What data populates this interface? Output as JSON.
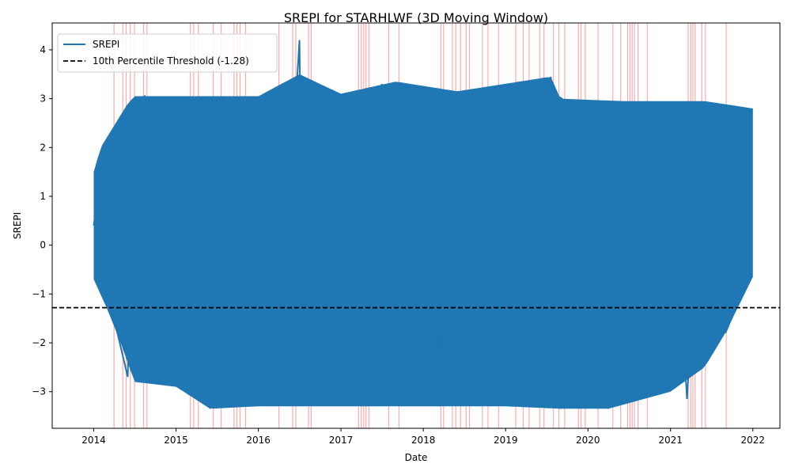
{
  "chart_data": {
    "type": "line",
    "title": "SREPI for STARHLWF (3D Moving Window)",
    "xlabel": "Date",
    "ylabel": "SREPI",
    "xlim": [
      "2013-07-01",
      "2022-05-01"
    ],
    "ylim": [
      -3.75,
      4.55
    ],
    "x_ticks": [
      "2014",
      "2015",
      "2016",
      "2017",
      "2018",
      "2019",
      "2020",
      "2021",
      "2022"
    ],
    "y_ticks": [
      "−3",
      "−2",
      "−1",
      "0",
      "1",
      "2",
      "3",
      "4"
    ],
    "y_tick_values": [
      -3,
      -2,
      -1,
      0,
      1,
      2,
      3,
      4
    ],
    "grid": false,
    "legend": {
      "placement": "upper-left",
      "entries": [
        {
          "label": "SREPI",
          "style": "solid",
          "color": "#1f77b4"
        },
        {
          "label": "10th Percentile Threshold (-1.28)",
          "style": "dashed",
          "color": "#000000"
        }
      ]
    },
    "series": [
      {
        "name": "SREPI",
        "color": "#1f77b4",
        "x": [
          "2014-01-01",
          "2014-02-15",
          "2014-04-01",
          "2014-06-01",
          "2014-07-01",
          "2014-08-15",
          "2015-01-01",
          "2015-03-15",
          "2015-06-01",
          "2015-09-01",
          "2016-01-01",
          "2016-04-01",
          "2016-07-01",
          "2016-07-03",
          "2016-10-01",
          "2017-01-01",
          "2017-04-01",
          "2017-07-01",
          "2017-09-01",
          "2018-01-01",
          "2018-03-15",
          "2018-06-01",
          "2018-09-01",
          "2019-01-01",
          "2019-04-01",
          "2019-07-20",
          "2019-09-01",
          "2020-01-01",
          "2020-04-01",
          "2020-07-01",
          "2020-10-01",
          "2021-01-01",
          "2021-03-15",
          "2021-06-01",
          "2021-09-01",
          "2021-12-15"
        ],
        "y": [
          0.4,
          2.0,
          -1.5,
          -2.7,
          2.9,
          3.05,
          -2.8,
          3.05,
          -3.35,
          2.5,
          3.0,
          -2.9,
          4.2,
          3.45,
          -3.0,
          3.05,
          -2.6,
          3.3,
          -2.8,
          3.1,
          -3.3,
          2.95,
          -2.9,
          3.15,
          -3.0,
          3.45,
          -3.35,
          2.95,
          -3.35,
          2.9,
          -3.0,
          2.9,
          -3.15,
          2.8,
          -1.8,
          -0.65
        ],
        "upper_envelope": {
          "x": [
            "2014-01-01",
            "2014-02-01",
            "2014-06-01",
            "2014-07-01",
            "2015-01-01",
            "2015-06-01",
            "2016-01-01",
            "2016-07-01",
            "2017-01-01",
            "2017-09-01",
            "2018-06-01",
            "2019-07-20",
            "2019-09-01",
            "2020-06-01",
            "2021-06-01",
            "2022-01-01"
          ],
          "y": [
            1.5,
            2.0,
            2.9,
            3.05,
            3.05,
            3.05,
            3.05,
            3.5,
            3.1,
            3.35,
            3.15,
            3.45,
            3.0,
            2.95,
            2.95,
            2.8
          ]
        },
        "lower_envelope": {
          "x": [
            "2014-01-01",
            "2014-03-01",
            "2014-05-01",
            "2014-07-01",
            "2015-01-01",
            "2015-06-01",
            "2016-01-01",
            "2017-01-01",
            "2018-01-01",
            "2019-01-01",
            "2019-09-01",
            "2020-04-01",
            "2021-01-01",
            "2021-06-01",
            "2021-09-01",
            "2022-01-01"
          ],
          "y": [
            -0.7,
            -1.3,
            -2.0,
            -2.8,
            -2.9,
            -3.35,
            -3.3,
            -3.3,
            -3.3,
            -3.3,
            -3.35,
            -3.35,
            -3.0,
            -2.5,
            -1.8,
            -0.65
          ]
        }
      }
    ],
    "threshold": {
      "label": "10th Percentile Threshold (-1.28)",
      "y": -1.28,
      "color": "#000000",
      "style": "dashed"
    },
    "highlight_color": "#ff6666",
    "highlight_dates": [
      "2014-04-01",
      "2014-05-10",
      "2014-05-25",
      "2014-06-12",
      "2014-07-01",
      "2014-08-10",
      "2014-08-25",
      "2015-03-05",
      "2015-03-20",
      "2015-04-10",
      "2015-06-15",
      "2015-07-20",
      "2015-09-15",
      "2015-09-28",
      "2015-10-12",
      "2015-11-05",
      "2016-04-01",
      "2016-06-01",
      "2016-06-15",
      "2016-08-10",
      "2016-08-22",
      "2017-03-20",
      "2017-04-01",
      "2017-04-12",
      "2017-04-22",
      "2017-05-05",
      "2017-08-01",
      "2017-09-15",
      "2018-03-20",
      "2018-04-01",
      "2018-05-10",
      "2018-05-25",
      "2018-06-15",
      "2018-07-10",
      "2018-07-25",
      "2018-09-20",
      "2018-10-15",
      "2018-12-01",
      "2019-02-15",
      "2019-03-20",
      "2019-04-15",
      "2019-06-01",
      "2019-06-20",
      "2019-08-01",
      "2019-08-25",
      "2019-09-20",
      "2019-11-20",
      "2019-12-01",
      "2019-12-20",
      "2020-02-15",
      "2020-04-20",
      "2020-05-25",
      "2020-06-25",
      "2020-07-05",
      "2020-07-15",
      "2020-07-25",
      "2020-08-10",
      "2020-09-20",
      "2021-03-20",
      "2021-04-01",
      "2021-04-10",
      "2021-04-20",
      "2021-05-20",
      "2021-06-05",
      "2021-09-05"
    ]
  }
}
